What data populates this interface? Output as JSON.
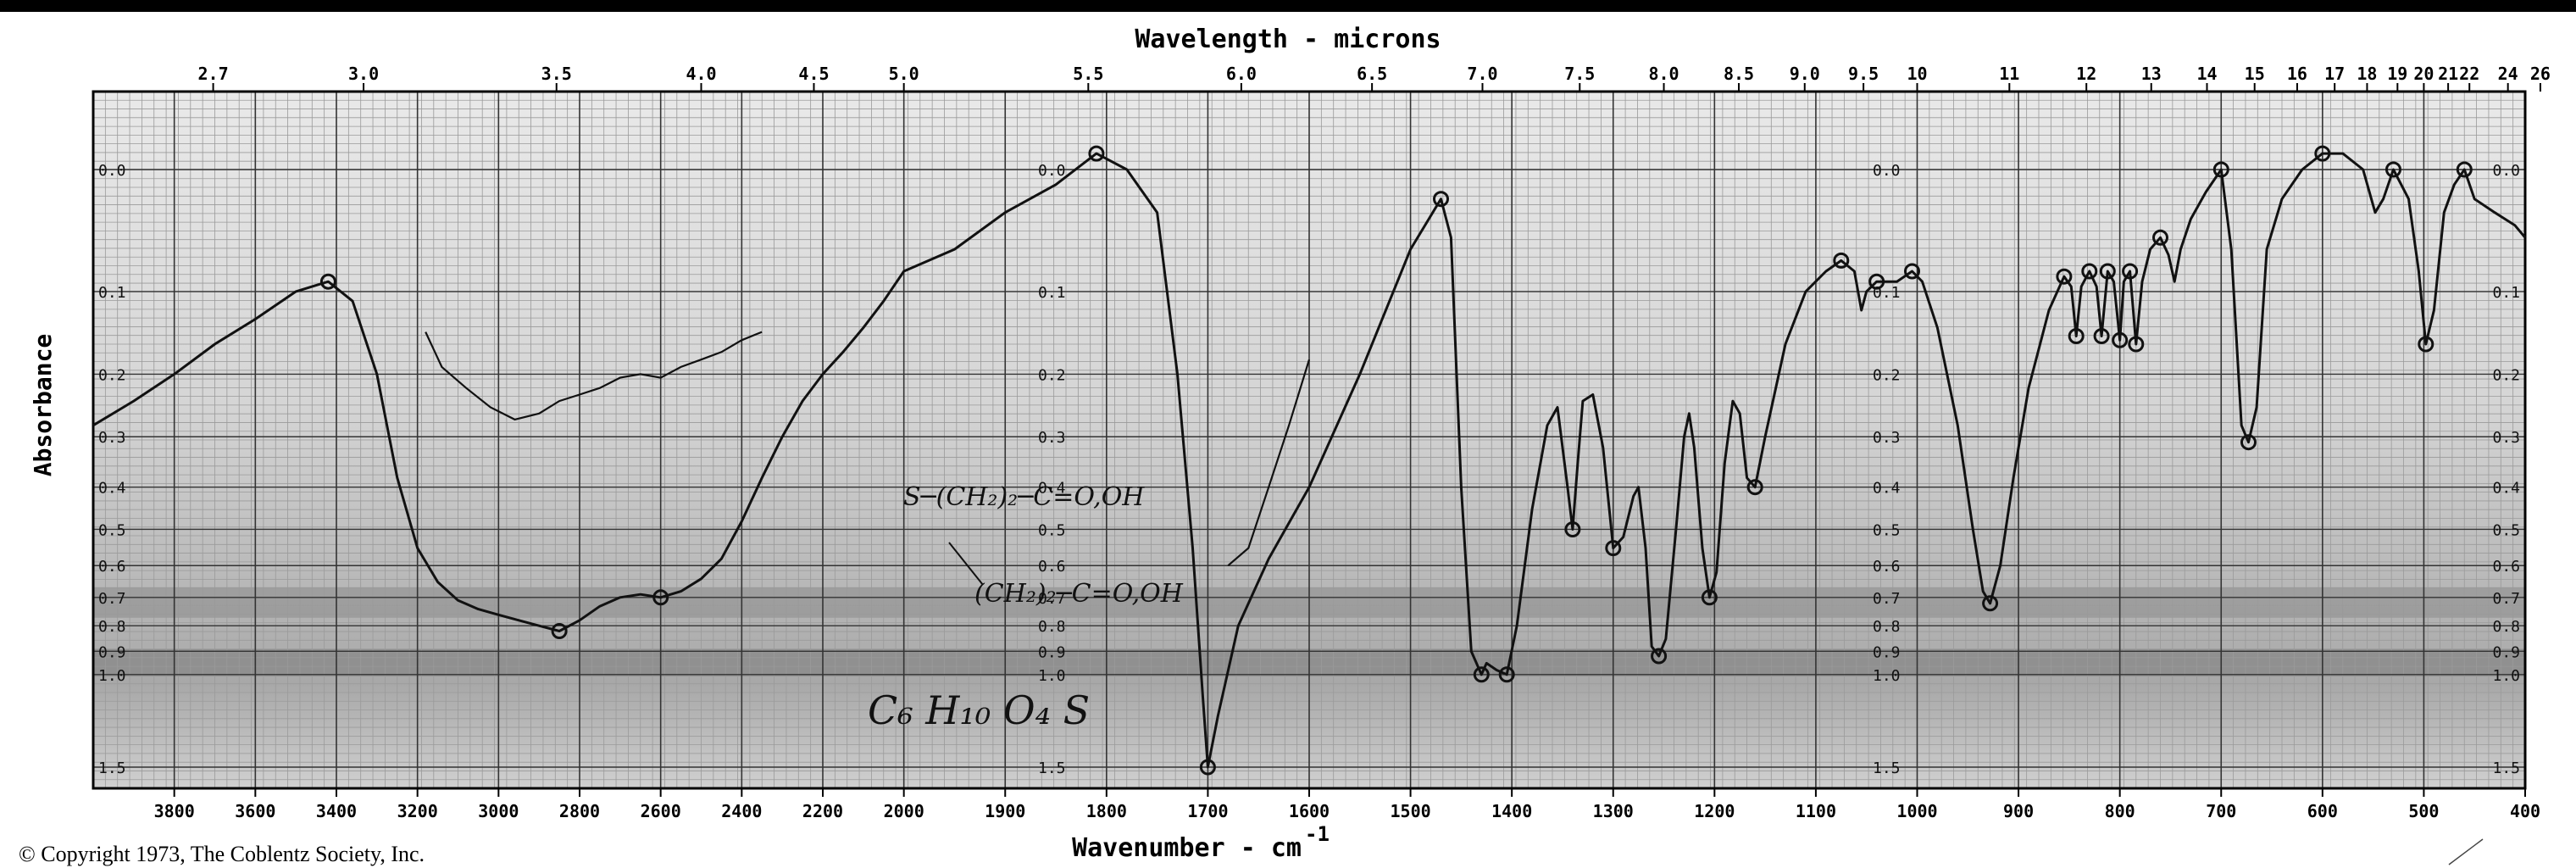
{
  "chart_data": {
    "type": "line",
    "title": "Wavelength - microns",
    "xlabel": "Wavenumber - cm",
    "xlabel_superscript": "-1",
    "ylabel": "Absorbance",
    "copyright": "© Copyright 1973, The Coblentz Society, Inc.",
    "grid": true,
    "wavenumber_ticks": [
      {
        "v": 3800,
        "label": "3800"
      },
      {
        "v": 3600,
        "label": "3600"
      },
      {
        "v": 3400,
        "label": "3400"
      },
      {
        "v": 3200,
        "label": "3200"
      },
      {
        "v": 3000,
        "label": "3000"
      },
      {
        "v": 2800,
        "label": "2800"
      },
      {
        "v": 2600,
        "label": "2600"
      },
      {
        "v": 2400,
        "label": "2400"
      },
      {
        "v": 2200,
        "label": "2200"
      },
      {
        "v": 2000,
        "label": "2000"
      },
      {
        "v": 1900,
        "label": "1900"
      },
      {
        "v": 1800,
        "label": "1800"
      },
      {
        "v": 1700,
        "label": "1700"
      },
      {
        "v": 1600,
        "label": "1600"
      },
      {
        "v": 1500,
        "label": "1500"
      },
      {
        "v": 1400,
        "label": "1400"
      },
      {
        "v": 1300,
        "label": "1300"
      },
      {
        "v": 1200,
        "label": "1200"
      },
      {
        "v": 1100,
        "label": "1100"
      },
      {
        "v": 1000,
        "label": "1000"
      },
      {
        "v": 900,
        "label": "900"
      },
      {
        "v": 800,
        "label": "800"
      },
      {
        "v": 700,
        "label": "700"
      },
      {
        "v": 600,
        "label": "600"
      },
      {
        "v": 500,
        "label": "500"
      },
      {
        "v": 400,
        "label": "400"
      }
    ],
    "wavelength_ticks": [
      {
        "v": 3704,
        "label": "2.7"
      },
      {
        "v": 3333,
        "label": "3.0"
      },
      {
        "v": 2857,
        "label": "3.5"
      },
      {
        "v": 2500,
        "label": "4.0"
      },
      {
        "v": 2222,
        "label": "4.5"
      },
      {
        "v": 2000,
        "label": "5.0"
      },
      {
        "v": 1818,
        "label": "5.5"
      },
      {
        "v": 1667,
        "label": "6.0"
      },
      {
        "v": 1538,
        "label": "6.5"
      },
      {
        "v": 1429,
        "label": "7.0"
      },
      {
        "v": 1333,
        "label": "7.5"
      },
      {
        "v": 1250,
        "label": "8.0"
      },
      {
        "v": 1176,
        "label": "8.5"
      },
      {
        "v": 1111,
        "label": "9.0"
      },
      {
        "v": 1053,
        "label": "9.5"
      },
      {
        "v": 1000,
        "label": "10"
      },
      {
        "v": 909,
        "label": "11"
      },
      {
        "v": 833,
        "label": "12"
      },
      {
        "v": 769,
        "label": "13"
      },
      {
        "v": 714,
        "label": "14"
      },
      {
        "v": 667,
        "label": "15"
      },
      {
        "v": 625,
        "label": "16"
      },
      {
        "v": 588,
        "label": "17"
      },
      {
        "v": 556,
        "label": "18"
      },
      {
        "v": 526,
        "label": "19"
      },
      {
        "v": 500,
        "label": "20"
      },
      {
        "v": 476,
        "label": "21"
      },
      {
        "v": 455,
        "label": "22"
      },
      {
        "v": 417,
        "label": "24"
      },
      {
        "v": 385,
        "label": "26"
      }
    ],
    "absorbance_ticks": [
      {
        "v": 0.0,
        "label": "0.0"
      },
      {
        "v": 0.1,
        "label": "0.1"
      },
      {
        "v": 0.2,
        "label": "0.2"
      },
      {
        "v": 0.3,
        "label": "0.3"
      },
      {
        "v": 0.4,
        "label": "0.4"
      },
      {
        "v": 0.5,
        "label": "0.5"
      },
      {
        "v": 0.6,
        "label": "0.6"
      },
      {
        "v": 0.7,
        "label": "0.7"
      },
      {
        "v": 0.8,
        "label": "0.8"
      },
      {
        "v": 0.9,
        "label": "0.9"
      },
      {
        "v": 1.0,
        "label": "1.0"
      },
      {
        "v": 1.5,
        "label": "1.5"
      }
    ],
    "annotations": {
      "formula": "C₆ H₁₀ O₄ S",
      "structure_top": "S─(CH₂)₂─C=O,OH",
      "structure_bottom": "(CH₂)₂─C=O,OH"
    },
    "spectrum": {
      "series_color": "#111111",
      "points": [
        [
          4000,
          0.28
        ],
        [
          3900,
          0.24
        ],
        [
          3800,
          0.2
        ],
        [
          3700,
          0.16
        ],
        [
          3600,
          0.13
        ],
        [
          3500,
          0.1
        ],
        [
          3420,
          0.09
        ],
        [
          3360,
          0.11
        ],
        [
          3300,
          0.2
        ],
        [
          3250,
          0.38
        ],
        [
          3200,
          0.55
        ],
        [
          3150,
          0.65
        ],
        [
          3100,
          0.71
        ],
        [
          3050,
          0.74
        ],
        [
          3000,
          0.76
        ],
        [
          2950,
          0.78
        ],
        [
          2900,
          0.8
        ],
        [
          2850,
          0.82
        ],
        [
          2800,
          0.78
        ],
        [
          2750,
          0.73
        ],
        [
          2700,
          0.7
        ],
        [
          2650,
          0.69
        ],
        [
          2600,
          0.7
        ],
        [
          2550,
          0.68
        ],
        [
          2500,
          0.64
        ],
        [
          2450,
          0.58
        ],
        [
          2400,
          0.48
        ],
        [
          2350,
          0.38
        ],
        [
          2300,
          0.3
        ],
        [
          2250,
          0.24
        ],
        [
          2200,
          0.2
        ],
        [
          2150,
          0.17
        ],
        [
          2100,
          0.14
        ],
        [
          2050,
          0.11
        ],
        [
          2000,
          0.08
        ],
        [
          1950,
          0.06
        ],
        [
          1900,
          0.03
        ],
        [
          1850,
          0.01
        ],
        [
          1810,
          -0.01
        ],
        [
          1780,
          0.0
        ],
        [
          1750,
          0.03
        ],
        [
          1730,
          0.2
        ],
        [
          1715,
          0.55
        ],
        [
          1705,
          1.1
        ],
        [
          1700,
          1.5
        ],
        [
          1690,
          1.2
        ],
        [
          1670,
          0.8
        ],
        [
          1640,
          0.58
        ],
        [
          1600,
          0.4
        ],
        [
          1550,
          0.2
        ],
        [
          1500,
          0.06
        ],
        [
          1470,
          0.02
        ],
        [
          1460,
          0.05
        ],
        [
          1450,
          0.4
        ],
        [
          1440,
          0.9
        ],
        [
          1430,
          1.0
        ],
        [
          1425,
          0.95
        ],
        [
          1415,
          0.98
        ],
        [
          1405,
          1.0
        ],
        [
          1395,
          0.8
        ],
        [
          1380,
          0.45
        ],
        [
          1365,
          0.28
        ],
        [
          1355,
          0.25
        ],
        [
          1345,
          0.4
        ],
        [
          1340,
          0.5
        ],
        [
          1335,
          0.35
        ],
        [
          1330,
          0.24
        ],
        [
          1320,
          0.23
        ],
        [
          1310,
          0.32
        ],
        [
          1300,
          0.55
        ],
        [
          1290,
          0.52
        ],
        [
          1280,
          0.42
        ],
        [
          1275,
          0.4
        ],
        [
          1268,
          0.55
        ],
        [
          1262,
          0.88
        ],
        [
          1255,
          0.92
        ],
        [
          1248,
          0.85
        ],
        [
          1238,
          0.5
        ],
        [
          1230,
          0.3
        ],
        [
          1225,
          0.26
        ],
        [
          1220,
          0.32
        ],
        [
          1212,
          0.55
        ],
        [
          1205,
          0.7
        ],
        [
          1198,
          0.62
        ],
        [
          1190,
          0.35
        ],
        [
          1182,
          0.24
        ],
        [
          1175,
          0.26
        ],
        [
          1168,
          0.38
        ],
        [
          1160,
          0.4
        ],
        [
          1150,
          0.3
        ],
        [
          1130,
          0.16
        ],
        [
          1110,
          0.1
        ],
        [
          1090,
          0.08
        ],
        [
          1075,
          0.07
        ],
        [
          1062,
          0.08
        ],
        [
          1055,
          0.12
        ],
        [
          1050,
          0.1
        ],
        [
          1040,
          0.09
        ],
        [
          1020,
          0.09
        ],
        [
          1005,
          0.08
        ],
        [
          995,
          0.09
        ],
        [
          980,
          0.14
        ],
        [
          960,
          0.28
        ],
        [
          945,
          0.5
        ],
        [
          935,
          0.68
        ],
        [
          928,
          0.72
        ],
        [
          918,
          0.6
        ],
        [
          905,
          0.38
        ],
        [
          890,
          0.22
        ],
        [
          870,
          0.12
        ],
        [
          855,
          0.085
        ],
        [
          848,
          0.095
        ],
        [
          843,
          0.15
        ],
        [
          838,
          0.095
        ],
        [
          830,
          0.08
        ],
        [
          823,
          0.095
        ],
        [
          818,
          0.15
        ],
        [
          812,
          0.08
        ],
        [
          806,
          0.09
        ],
        [
          800,
          0.155
        ],
        [
          796,
          0.09
        ],
        [
          790,
          0.08
        ],
        [
          784,
          0.16
        ],
        [
          778,
          0.09
        ],
        [
          770,
          0.06
        ],
        [
          760,
          0.05
        ],
        [
          752,
          0.065
        ],
        [
          746,
          0.09
        ],
        [
          740,
          0.06
        ],
        [
          730,
          0.035
        ],
        [
          715,
          0.015
        ],
        [
          700,
          0.0
        ],
        [
          690,
          0.06
        ],
        [
          680,
          0.28
        ],
        [
          673,
          0.31
        ],
        [
          665,
          0.25
        ],
        [
          655,
          0.06
        ],
        [
          640,
          0.02
        ],
        [
          620,
          0.0
        ],
        [
          600,
          -0.01
        ],
        [
          580,
          -0.01
        ],
        [
          560,
          0.0
        ],
        [
          548,
          0.03
        ],
        [
          540,
          0.02
        ],
        [
          530,
          0.0
        ],
        [
          515,
          0.02
        ],
        [
          505,
          0.08
        ],
        [
          498,
          0.16
        ],
        [
          490,
          0.12
        ],
        [
          480,
          0.03
        ],
        [
          470,
          0.01
        ],
        [
          460,
          0.0
        ],
        [
          450,
          0.02
        ],
        [
          430,
          0.03
        ],
        [
          410,
          0.04
        ],
        [
          400,
          0.05
        ]
      ],
      "extra_strokes": [
        [
          [
            3180,
            0.145
          ],
          [
            3140,
            0.19
          ],
          [
            3080,
            0.22
          ],
          [
            3020,
            0.25
          ],
          [
            2960,
            0.27
          ],
          [
            2900,
            0.26
          ],
          [
            2850,
            0.24
          ],
          [
            2800,
            0.23
          ],
          [
            2750,
            0.22
          ],
          [
            2700,
            0.205
          ],
          [
            2650,
            0.2
          ],
          [
            2600,
            0.205
          ],
          [
            2550,
            0.19
          ],
          [
            2500,
            0.18
          ],
          [
            2450,
            0.17
          ],
          [
            2400,
            0.155
          ],
          [
            2350,
            0.145
          ]
        ],
        [
          [
            1680,
            0.6
          ],
          [
            1660,
            0.55
          ],
          [
            1640,
            0.4
          ],
          [
            1620,
            0.28
          ],
          [
            1600,
            0.18
          ]
        ]
      ]
    }
  }
}
